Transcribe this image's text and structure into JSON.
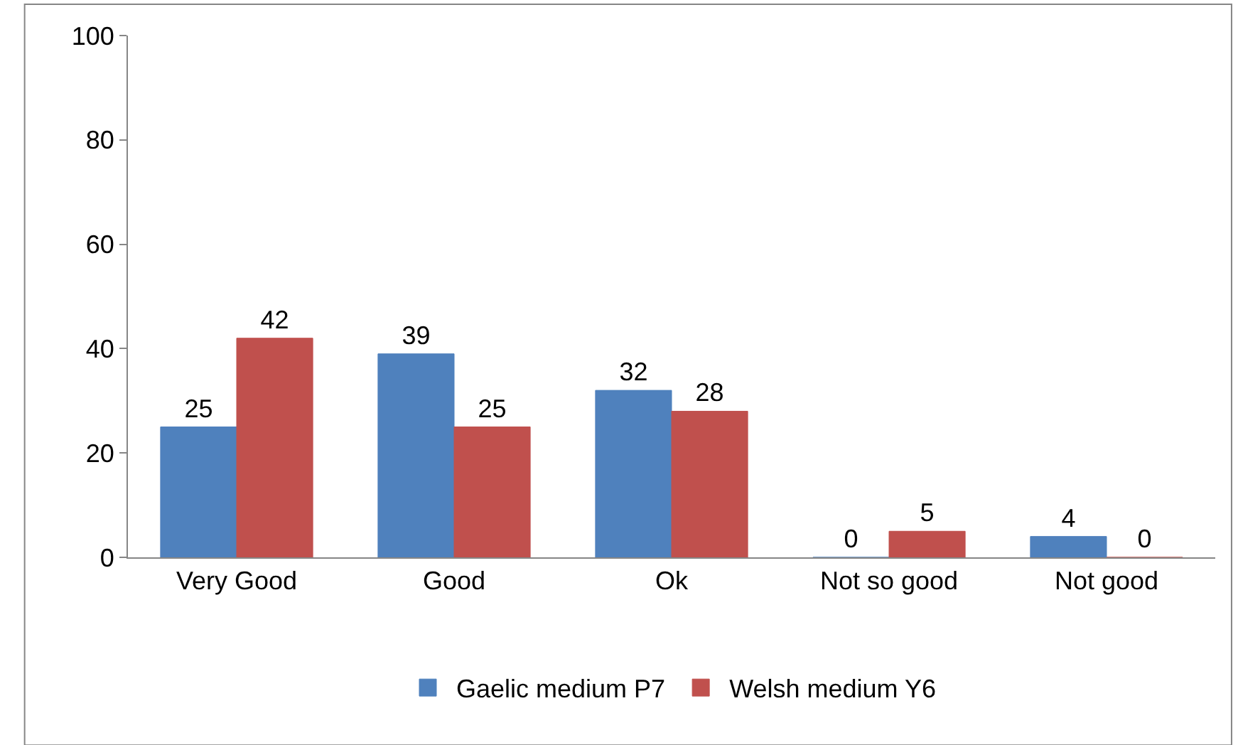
{
  "chart_data": {
    "type": "bar",
    "categories": [
      "Very Good",
      "Good",
      "Ok",
      "Not so good",
      "Not good"
    ],
    "series": [
      {
        "name": "Gaelic medium P7",
        "color": "#4f81bd",
        "values": [
          25,
          39,
          32,
          0,
          4
        ]
      },
      {
        "name": "Welsh medium Y6",
        "color": "#c0504d",
        "values": [
          42,
          25,
          28,
          5,
          0
        ]
      }
    ],
    "ylim": [
      0,
      100
    ],
    "yticks": [
      0,
      20,
      40,
      60,
      80,
      100
    ],
    "data_labels": true,
    "grid": false,
    "legend": "bottom"
  }
}
